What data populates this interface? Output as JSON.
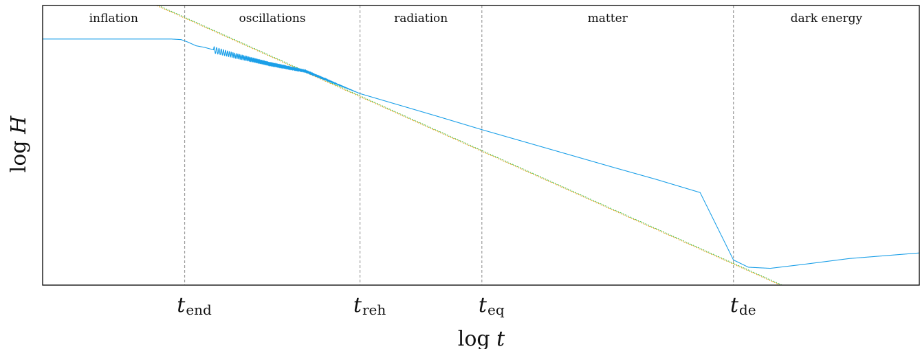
{
  "chart_data": {
    "type": "line",
    "title": "",
    "xlabel": "log t",
    "ylabel": "log H",
    "x_range": [
      0,
      1000
    ],
    "y_range": [
      0,
      1000
    ],
    "regions": [
      {
        "label": "inflation",
        "start": 0,
        "end": 162
      },
      {
        "label": "oscillations",
        "start": 162,
        "end": 362
      },
      {
        "label": "radiation",
        "start": 362,
        "end": 501
      },
      {
        "label": "matter",
        "start": 501,
        "end": 788
      },
      {
        "label": "dark energy",
        "start": 788,
        "end": 1000
      }
    ],
    "ticks": [
      {
        "base": "t",
        "sub": "end",
        "x": 162
      },
      {
        "base": "t",
        "sub": "reh",
        "x": 362
      },
      {
        "base": "t",
        "sub": "eq",
        "x": 501
      },
      {
        "base": "t",
        "sub": "de",
        "x": 788
      }
    ],
    "series": [
      {
        "role": "hubble",
        "color": "#1a9fe8",
        "points": [
          [
            0,
            880
          ],
          [
            147,
            880
          ],
          [
            158,
            878
          ],
          [
            165,
            870
          ],
          [
            175,
            856
          ],
          [
            185,
            850
          ],
          [
            220,
            820
          ],
          [
            260,
            790
          ],
          [
            300,
            765
          ],
          [
            362,
            685
          ],
          [
            400,
            650
          ],
          [
            450,
            604
          ],
          [
            501,
            556
          ],
          [
            550,
            512
          ],
          [
            600,
            467
          ],
          [
            650,
            422
          ],
          [
            700,
            378
          ],
          [
            750,
            331
          ],
          [
            788,
            90
          ],
          [
            805,
            64
          ],
          [
            830,
            60
          ],
          [
            870,
            75
          ],
          [
            920,
            95
          ],
          [
            1000,
            115
          ]
        ],
        "oscillation": {
          "from": 195,
          "to": 357,
          "amp_start": 12,
          "amp_end": 0.5
        }
      },
      {
        "role": "power-law reference",
        "color": "#e8a020",
        "dash": "dotted",
        "points": [
          [
            130,
            1000
          ],
          [
            845,
            -5
          ]
        ]
      },
      {
        "role": "power-law reference",
        "color": "#48c048",
        "dash": "dotted",
        "points": [
          [
            132,
            1000
          ],
          [
            847,
            -5
          ]
        ]
      }
    ],
    "grid": false,
    "legend": "none",
    "colors": {
      "axes": "#111111",
      "guide": "#9a9a9a"
    }
  }
}
